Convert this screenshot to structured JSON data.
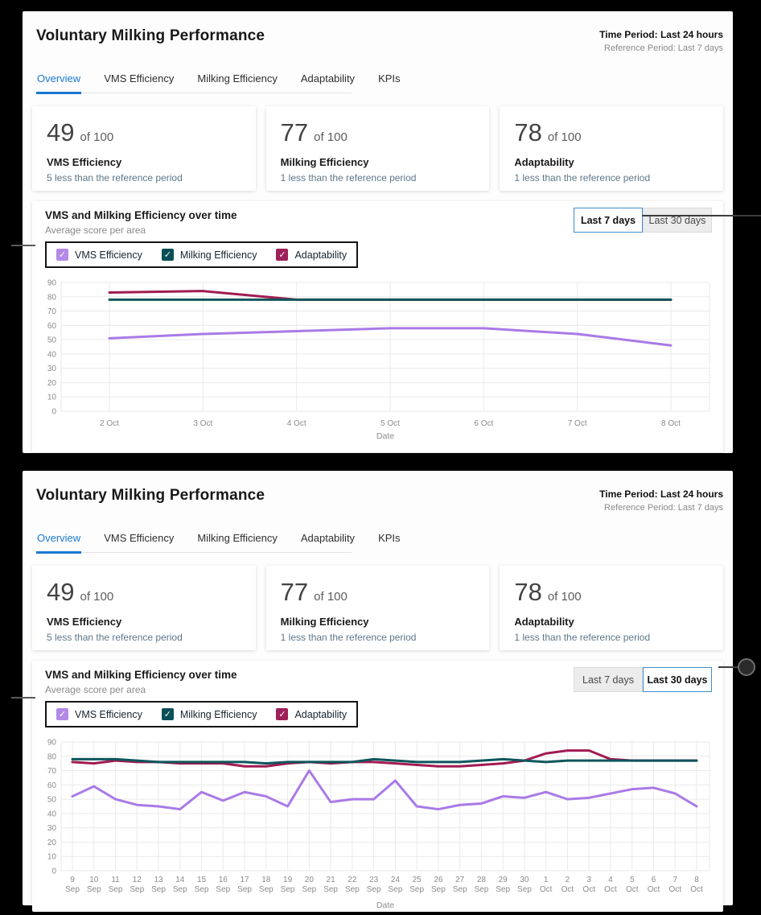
{
  "colors": {
    "accent_blue": "#1878d2",
    "vms_purple": "#a97ae6",
    "vms_checkbox": "#b489e6",
    "milking_teal": "#0d565c",
    "milking_checkbox": "#0a4f58",
    "adaptability_crimson": "#a21b52",
    "adaptability_checkbox": "#9e2059",
    "grid": "#eaeaea",
    "tick_label": "#8a8a8a"
  },
  "icons": {
    "check": "✓"
  },
  "panels": [
    {
      "title": "Voluntary Milking Performance",
      "time_period": "Time Period: Last 24 hours",
      "reference_period": "Reference Period: Last 7 days",
      "tabs": [
        "Overview",
        "VMS Efficiency",
        "Milking Efficiency",
        "Adaptability",
        "KPIs"
      ],
      "active_tab": "Overview",
      "cards": [
        {
          "value": "49",
          "max": "of 100",
          "name": "VMS Efficiency",
          "delta": "5 less than the reference period"
        },
        {
          "value": "77",
          "max": "of 100",
          "name": "Milking Efficiency",
          "delta": "1 less than the reference period"
        },
        {
          "value": "78",
          "max": "of 100",
          "name": "Adaptability",
          "delta": "1 less than the reference period"
        }
      ],
      "chart_title": "VMS and Milking Efficiency over time",
      "chart_subtitle": "Average score per area",
      "toggle": {
        "last7": "Last 7 days",
        "last30": "Last 30 days",
        "selected": "Last 7 days"
      },
      "legend": [
        "VMS Efficiency",
        "Milking Efficiency",
        "Adaptability"
      ]
    },
    {
      "title": "Voluntary Milking Performance",
      "time_period": "Time Period: Last 24 hours",
      "reference_period": "Reference Period: Last 7 days",
      "tabs": [
        "Overview",
        "VMS Efficiency",
        "Milking Efficiency",
        "Adaptability",
        "KPIs"
      ],
      "active_tab": "Overview",
      "cards": [
        {
          "value": "49",
          "max": "of 100",
          "name": "VMS Efficiency",
          "delta": "5 less than the reference period"
        },
        {
          "value": "77",
          "max": "of 100",
          "name": "Milking Efficiency",
          "delta": "1 less than the reference period"
        },
        {
          "value": "78",
          "max": "of 100",
          "name": "Adaptability",
          "delta": "1 less than the reference period"
        }
      ],
      "chart_title": "VMS and Milking Efficiency over time",
      "chart_subtitle": "Average score per area",
      "toggle": {
        "last7": "Last 7 days",
        "last30": "Last 30 days",
        "selected": "Last 30 days"
      },
      "legend": [
        "VMS Efficiency",
        "Milking Efficiency",
        "Adaptability"
      ]
    }
  ],
  "chart_data": [
    {
      "type": "line",
      "title": "VMS and Milking Efficiency over time",
      "subtitle": "Average score per area",
      "time_range": "Last 7 days",
      "categories": [
        "2 Oct",
        "3 Oct",
        "4 Oct",
        "5 Oct",
        "6 Oct",
        "7 Oct",
        "8 Oct"
      ],
      "xlabel": "Date",
      "ylim": [
        0,
        90
      ],
      "yticks": [
        0,
        10,
        20,
        30,
        40,
        50,
        60,
        70,
        80,
        90
      ],
      "grid": true,
      "legend_position": "top-left",
      "legend": [
        "VMS Efficiency",
        "Milking Efficiency",
        "Adaptability"
      ],
      "series": [
        {
          "name": "VMS Efficiency",
          "color": "#a97ae6",
          "values": [
            51,
            54,
            56,
            58,
            58,
            54,
            46
          ]
        },
        {
          "name": "Adaptability",
          "color": "#a21b52",
          "values": [
            83,
            84,
            78,
            78,
            78,
            78,
            78
          ]
        },
        {
          "name": "Milking Efficiency",
          "color": "#0d565c",
          "values": [
            78,
            78,
            78,
            78,
            78,
            78,
            78
          ]
        }
      ]
    },
    {
      "type": "line",
      "title": "VMS and Milking Efficiency over time",
      "subtitle": "Average score per area",
      "time_range": "Last 30 days",
      "categories_day": [
        "9",
        "10",
        "11",
        "12",
        "13",
        "14",
        "15",
        "16",
        "17",
        "18",
        "19",
        "20",
        "21",
        "22",
        "23",
        "24",
        "25",
        "26",
        "27",
        "28",
        "29",
        "30",
        "1",
        "2",
        "3",
        "4",
        "5",
        "6",
        "7",
        "8"
      ],
      "categories_month": [
        "Sep",
        "Sep",
        "Sep",
        "Sep",
        "Sep",
        "Sep",
        "Sep",
        "Sep",
        "Sep",
        "Sep",
        "Sep",
        "Sep",
        "Sep",
        "Sep",
        "Sep",
        "Sep",
        "Sep",
        "Sep",
        "Sep",
        "Sep",
        "Sep",
        "Sep",
        "Oct",
        "Oct",
        "Oct",
        "Oct",
        "Oct",
        "Oct",
        "Oct",
        "Oct"
      ],
      "xlabel": "Date",
      "ylim": [
        0,
        90
      ],
      "yticks": [
        0,
        10,
        20,
        30,
        40,
        50,
        60,
        70,
        80,
        90
      ],
      "grid": true,
      "legend_position": "top-left",
      "legend": [
        "VMS Efficiency",
        "Milking Efficiency",
        "Adaptability"
      ],
      "series": [
        {
          "name": "VMS Efficiency",
          "color": "#a97ae6",
          "values": [
            52,
            59,
            50,
            46,
            45,
            43,
            55,
            49,
            55,
            52,
            45,
            70,
            48,
            50,
            50,
            63,
            45,
            43,
            46,
            47,
            52,
            51,
            55,
            50,
            51,
            54,
            57,
            58,
            54,
            45
          ]
        },
        {
          "name": "Adaptability",
          "color": "#a21b52",
          "values": [
            76,
            75,
            77,
            76,
            76,
            75,
            75,
            75,
            73,
            73,
            75,
            76,
            75,
            76,
            76,
            75,
            74,
            73,
            73,
            74,
            75,
            77,
            82,
            84,
            84,
            78,
            77,
            77,
            77,
            77
          ]
        },
        {
          "name": "Milking Efficiency",
          "color": "#0d565c",
          "values": [
            78,
            78,
            78,
            77,
            76,
            76,
            76,
            76,
            76,
            75,
            76,
            76,
            76,
            76,
            78,
            77,
            76,
            76,
            76,
            77,
            78,
            77,
            76,
            77,
            77,
            77,
            77,
            77,
            77,
            77
          ]
        }
      ]
    }
  ]
}
